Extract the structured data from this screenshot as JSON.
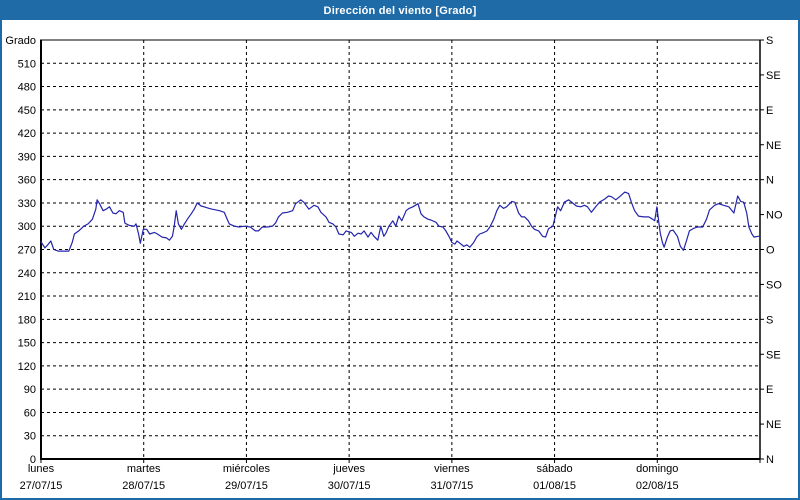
{
  "window": {
    "title": "Dirección del viento [Grado]"
  },
  "colors": {
    "header_bg": "#1E6BA8",
    "frame_border": "#1E6BA8",
    "line": "#2424AC",
    "grid": "#000000",
    "axis": "#000000",
    "text": "#000000",
    "plot_bg": "#FFFFFF"
  },
  "chart_data": {
    "type": "line",
    "title": "Dirección del viento [Grado]",
    "ylabel": "Grado",
    "grid": "dashed",
    "legend_position": "none",
    "y_axis_left": {
      "unit_label": "Grado",
      "min": 0,
      "max": 540,
      "tick_step": 30,
      "ticks": [
        510,
        480,
        450,
        420,
        390,
        360,
        330,
        300,
        270,
        240,
        210,
        180,
        150,
        120,
        90,
        60,
        30,
        0
      ]
    },
    "y_axis_right": {
      "description": "compass directions every 45 degrees, top to bottom",
      "entries": [
        {
          "label": "S",
          "deg": 540
        },
        {
          "label": "SE",
          "deg": 495
        },
        {
          "label": "E",
          "deg": 450
        },
        {
          "label": "NE",
          "deg": 405
        },
        {
          "label": "N",
          "deg": 360
        },
        {
          "label": "NO",
          "deg": 315
        },
        {
          "label": "O",
          "deg": 270
        },
        {
          "label": "SO",
          "deg": 225
        },
        {
          "label": "S",
          "deg": 180
        },
        {
          "label": "SE",
          "deg": 135
        },
        {
          "label": "E",
          "deg": 90
        },
        {
          "label": "NE",
          "deg": 45
        },
        {
          "label": "N",
          "deg": 0
        }
      ]
    },
    "x_axis": {
      "min_hour": 0,
      "max_hour": 168,
      "day_span_hours": 24,
      "days": [
        {
          "name": "lunes",
          "date": "27/07/15",
          "start_hour": 0
        },
        {
          "name": "martes",
          "date": "28/07/15",
          "start_hour": 24
        },
        {
          "name": "miércoles",
          "date": "29/07/15",
          "start_hour": 48
        },
        {
          "name": "jueves",
          "date": "30/07/15",
          "start_hour": 72
        },
        {
          "name": "viernes",
          "date": "31/07/15",
          "start_hour": 96
        },
        {
          "name": "sábado",
          "date": "01/08/15",
          "start_hour": 120
        },
        {
          "name": "domingo",
          "date": "02/08/15",
          "start_hour": 144
        }
      ]
    },
    "series": [
      {
        "name": "Dirección del viento",
        "color": "#2424AC",
        "points": [
          [
            0,
            280
          ],
          [
            0.9,
            272
          ],
          [
            1.6,
            276
          ],
          [
            2.3,
            281
          ],
          [
            3,
            270
          ],
          [
            4,
            268
          ],
          [
            5,
            268
          ],
          [
            6.5,
            268
          ],
          [
            7.3,
            279
          ],
          [
            7.8,
            290
          ],
          [
            8.8,
            294
          ],
          [
            10,
            300
          ],
          [
            11,
            303
          ],
          [
            12,
            309
          ],
          [
            12.8,
            322
          ],
          [
            13.1,
            334
          ],
          [
            13.7,
            329
          ],
          [
            14.5,
            320
          ],
          [
            15.2,
            322
          ],
          [
            16,
            325
          ],
          [
            16.8,
            317
          ],
          [
            17.5,
            316
          ],
          [
            18.3,
            320
          ],
          [
            19.2,
            318
          ],
          [
            19.6,
            304
          ],
          [
            20.6,
            301
          ],
          [
            21.8,
            300
          ],
          [
            22.2,
            303
          ],
          [
            22.8,
            290
          ],
          [
            23.2,
            278
          ],
          [
            23.9,
            296
          ],
          [
            24.7,
            296
          ],
          [
            25.4,
            290
          ],
          [
            26.5,
            292
          ],
          [
            27.2,
            290
          ],
          [
            28.3,
            286
          ],
          [
            29.3,
            285
          ],
          [
            30,
            282
          ],
          [
            30.7,
            287
          ],
          [
            31.1,
            299
          ],
          [
            31.6,
            320
          ],
          [
            32.1,
            303
          ],
          [
            32.8,
            296
          ],
          [
            33.5,
            303
          ],
          [
            34.2,
            309
          ],
          [
            35.1,
            316
          ],
          [
            35.8,
            322
          ],
          [
            36.5,
            330
          ],
          [
            37.4,
            326
          ],
          [
            38.1,
            325
          ],
          [
            39.3,
            323
          ],
          [
            40,
            322
          ],
          [
            41.7,
            320
          ],
          [
            42.8,
            318
          ],
          [
            43.5,
            309
          ],
          [
            44,
            303
          ],
          [
            45.2,
            300
          ],
          [
            46.3,
            299
          ],
          [
            47.5,
            300
          ],
          [
            48.9,
            299
          ],
          [
            50.1,
            294
          ],
          [
            50.8,
            294
          ],
          [
            51.7,
            299
          ],
          [
            52.9,
            299
          ],
          [
            54.1,
            300
          ],
          [
            54.8,
            304
          ],
          [
            55.5,
            312
          ],
          [
            56.4,
            317
          ],
          [
            57.6,
            318
          ],
          [
            58.8,
            320
          ],
          [
            59.5,
            329
          ],
          [
            60.7,
            334
          ],
          [
            61.4,
            331
          ],
          [
            62.6,
            322
          ],
          [
            63.8,
            327
          ],
          [
            64.7,
            325
          ],
          [
            65.4,
            318
          ],
          [
            66.6,
            312
          ],
          [
            67.3,
            305
          ],
          [
            68.2,
            303
          ],
          [
            68.9,
            299
          ],
          [
            69.6,
            290
          ],
          [
            70.6,
            289
          ],
          [
            71.3,
            294
          ],
          [
            72.5,
            292
          ],
          [
            73.2,
            287
          ],
          [
            74.1,
            291
          ],
          [
            74.8,
            290
          ],
          [
            75.5,
            294
          ],
          [
            76.4,
            286
          ],
          [
            77.1,
            292
          ],
          [
            77.8,
            287
          ],
          [
            78.7,
            282
          ],
          [
            79.4,
            300
          ],
          [
            80.1,
            287
          ],
          [
            80.6,
            291
          ],
          [
            81.3,
            300
          ],
          [
            82.2,
            307
          ],
          [
            82.9,
            300
          ],
          [
            83.6,
            313
          ],
          [
            84.3,
            307
          ],
          [
            85.3,
            320
          ],
          [
            86,
            323
          ],
          [
            86.9,
            325
          ],
          [
            88.1,
            329
          ],
          [
            88.8,
            316
          ],
          [
            89.5,
            312
          ],
          [
            90.4,
            309
          ],
          [
            91.1,
            308
          ],
          [
            92.3,
            305
          ],
          [
            93,
            300
          ],
          [
            93.9,
            299
          ],
          [
            94.6,
            294
          ],
          [
            95.3,
            287
          ],
          [
            96,
            279
          ],
          [
            96.7,
            277
          ],
          [
            97.2,
            281
          ],
          [
            97.9,
            278
          ],
          [
            98.8,
            274
          ],
          [
            99.5,
            276
          ],
          [
            100.2,
            273
          ],
          [
            101.1,
            279
          ],
          [
            101.8,
            286
          ],
          [
            102.5,
            290
          ],
          [
            103.5,
            292
          ],
          [
            104.2,
            294
          ],
          [
            104.9,
            299
          ],
          [
            105.8,
            309
          ],
          [
            106.5,
            320
          ],
          [
            107.2,
            327
          ],
          [
            108.1,
            323
          ],
          [
            108.8,
            325
          ],
          [
            110,
            332
          ],
          [
            110.7,
            331
          ],
          [
            111.6,
            317
          ],
          [
            112.3,
            312
          ],
          [
            113,
            312
          ],
          [
            113.9,
            307
          ],
          [
            114.6,
            300
          ],
          [
            115.3,
            296
          ],
          [
            116.3,
            294
          ],
          [
            117.2,
            287
          ],
          [
            117.9,
            286
          ],
          [
            118.6,
            297
          ],
          [
            119.6,
            300
          ],
          [
            120.7,
            325
          ],
          [
            121.4,
            320
          ],
          [
            122.3,
            331
          ],
          [
            123.3,
            334
          ],
          [
            124.2,
            330
          ],
          [
            125.1,
            326
          ],
          [
            126.1,
            325
          ],
          [
            127,
            327
          ],
          [
            127.7,
            325
          ],
          [
            128.6,
            318
          ],
          [
            129.6,
            325
          ],
          [
            130.5,
            331
          ],
          [
            131.7,
            335
          ],
          [
            132.6,
            339
          ],
          [
            133.3,
            338
          ],
          [
            134.3,
            334
          ],
          [
            135.2,
            338
          ],
          [
            136.4,
            344
          ],
          [
            137.3,
            342
          ],
          [
            138,
            330
          ],
          [
            138.7,
            320
          ],
          [
            139.6,
            313
          ],
          [
            140.8,
            312
          ],
          [
            142,
            312
          ],
          [
            142.9,
            309
          ],
          [
            143.4,
            307
          ],
          [
            143.9,
            325
          ],
          [
            144.4,
            303
          ],
          [
            144.7,
            291
          ],
          [
            145.2,
            279
          ],
          [
            145.6,
            273
          ],
          [
            146.3,
            285
          ],
          [
            147,
            294
          ],
          [
            147.7,
            295
          ],
          [
            148.7,
            287
          ],
          [
            149.4,
            274
          ],
          [
            150.1,
            269
          ],
          [
            150.8,
            281
          ],
          [
            151.5,
            294
          ],
          [
            152.4,
            297
          ],
          [
            153.4,
            299
          ],
          [
            154.6,
            299
          ],
          [
            155.5,
            309
          ],
          [
            156.2,
            321
          ],
          [
            157.4,
            327
          ],
          [
            158.3,
            329
          ],
          [
            159.5,
            327
          ],
          [
            160.7,
            325
          ],
          [
            161.9,
            317
          ],
          [
            162.8,
            339
          ],
          [
            163.5,
            332
          ],
          [
            164.2,
            331
          ],
          [
            164.9,
            317
          ],
          [
            165.4,
            299
          ],
          [
            166.1,
            290
          ],
          [
            166.6,
            286
          ],
          [
            167.5,
            287
          ],
          [
            168,
            287
          ]
        ]
      }
    ]
  }
}
